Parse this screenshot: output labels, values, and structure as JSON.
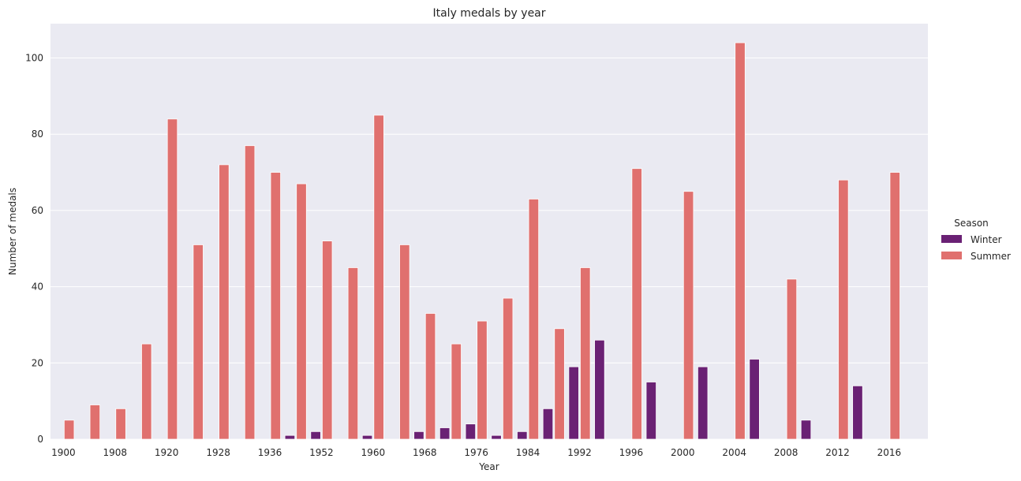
{
  "chart_data": {
    "type": "bar",
    "title": "Italy medals by year",
    "xlabel": "Year",
    "ylabel": "Number of medals",
    "ylim": [
      0,
      109
    ],
    "yticks": [
      0,
      20,
      40,
      60,
      80,
      100
    ],
    "grid": true,
    "legend": {
      "title": "Season",
      "placement": "right"
    },
    "categories": [
      "1900",
      "1908",
      "1920",
      "1928",
      "1936",
      "1952",
      "1960",
      "1968",
      "1976",
      "1984",
      "1992",
      "1996",
      "2000",
      "2004",
      "2008",
      "2012",
      "2016"
    ],
    "slots": [
      {
        "label": "1900",
        "winter": null,
        "summer": 5
      },
      {
        "label": "",
        "winter": null,
        "summer": 9
      },
      {
        "label": "1908",
        "winter": null,
        "summer": 8
      },
      {
        "label": "",
        "winter": null,
        "summer": 25
      },
      {
        "label": "1920",
        "winter": null,
        "summer": 84
      },
      {
        "label": "",
        "winter": null,
        "summer": 51
      },
      {
        "label": "1928",
        "winter": null,
        "summer": 72
      },
      {
        "label": "",
        "winter": null,
        "summer": 77
      },
      {
        "label": "1936",
        "winter": null,
        "summer": 70
      },
      {
        "label": "",
        "winter": 1,
        "summer": 67
      },
      {
        "label": "1952",
        "winter": 2,
        "summer": 52
      },
      {
        "label": "",
        "winter": null,
        "summer": 45
      },
      {
        "label": "1960",
        "winter": 1,
        "summer": 85
      },
      {
        "label": "",
        "winter": null,
        "summer": 51
      },
      {
        "label": "1968",
        "winter": 2,
        "summer": 33
      },
      {
        "label": "",
        "winter": 3,
        "summer": 25
      },
      {
        "label": "1976",
        "winter": 4,
        "summer": 31
      },
      {
        "label": "",
        "winter": 1,
        "summer": 37
      },
      {
        "label": "1984",
        "winter": 2,
        "summer": 63
      },
      {
        "label": "",
        "winter": 8,
        "summer": 29
      },
      {
        "label": "1992",
        "winter": 19,
        "summer": 45
      },
      {
        "label": "",
        "winter": 26,
        "summer": null
      },
      {
        "label": "1996",
        "winter": null,
        "summer": 71
      },
      {
        "label": "",
        "winter": 15,
        "summer": null
      },
      {
        "label": "2000",
        "winter": null,
        "summer": 65
      },
      {
        "label": "",
        "winter": 19,
        "summer": null
      },
      {
        "label": "2004",
        "winter": null,
        "summer": 104
      },
      {
        "label": "",
        "winter": 21,
        "summer": null
      },
      {
        "label": "2008",
        "winter": null,
        "summer": 42
      },
      {
        "label": "",
        "winter": 5,
        "summer": null
      },
      {
        "label": "2012",
        "winter": null,
        "summer": 68
      },
      {
        "label": "",
        "winter": 14,
        "summer": null
      },
      {
        "label": "2016",
        "winter": null,
        "summer": 70
      },
      {
        "label": "",
        "winter": null,
        "summer": null
      }
    ],
    "series": [
      {
        "name": "Winter",
        "color": "#6a2174"
      },
      {
        "name": "Summer",
        "color": "#e0706e"
      }
    ]
  }
}
